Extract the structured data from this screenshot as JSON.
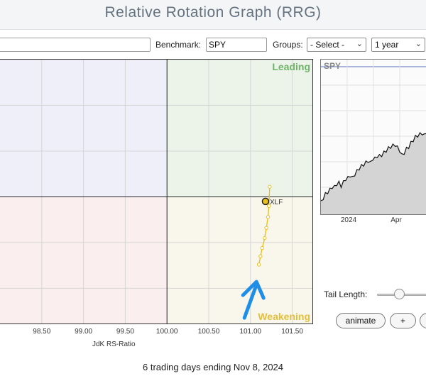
{
  "header": {
    "title": "Relative Rotation Graph (RRG)"
  },
  "controls": {
    "symbols_value": "",
    "benchmark_label": "Benchmark:",
    "benchmark_value": "SPY",
    "groups_label": "Groups:",
    "groups_selected": "- Select -",
    "period_selected": "1 year"
  },
  "chart_data": [
    {
      "type": "scatter",
      "x_ticks": [
        "98.50",
        "99.00",
        "99.50",
        "100.00",
        "100.50",
        "101.00",
        "101.50"
      ],
      "xlabel": "JdK RS-Ratio",
      "xlim": [
        98.0,
        101.75
      ],
      "ylim": [
        98.6,
        101.5
      ],
      "center": [
        100.0,
        100.0
      ],
      "quadrant_labels": {
        "top_right": "Leading",
        "bottom_right": "Weakening"
      },
      "quadrant_colors": {
        "top_left": "#efeffa",
        "top_right": "#ecf4ea",
        "bottom_left": "#faeeee",
        "bottom_right": "#f9f7ec"
      },
      "series": [
        {
          "name": "XLF",
          "color": "#e8c020",
          "tail": [
            {
              "x": 101.1,
              "y": 99.26
            },
            {
              "x": 101.12,
              "y": 99.35
            },
            {
              "x": 101.14,
              "y": 99.44
            },
            {
              "x": 101.17,
              "y": 99.55
            },
            {
              "x": 101.19,
              "y": 99.66
            },
            {
              "x": 101.21,
              "y": 99.78
            },
            {
              "x": 101.22,
              "y": 99.9
            },
            {
              "x": 101.23,
              "y": 100.11
            }
          ],
          "head": {
            "x": 101.18,
            "y": 99.95
          }
        }
      ]
    },
    {
      "type": "area",
      "title": "SPY",
      "x_ticks": [
        "2024",
        "Apr"
      ],
      "values": [
        0.08,
        0.12,
        0.16,
        0.2,
        0.22,
        0.25,
        0.24,
        0.28,
        0.3,
        0.27,
        0.32,
        0.35,
        0.38,
        0.4,
        0.36,
        0.42,
        0.45,
        0.48,
        0.5,
        0.52,
        0.55,
        0.58,
        0.56,
        0.6,
        0.62,
        0.64,
        0.63,
        0.66,
        0.68,
        0.7,
        0.72,
        0.74,
        0.76,
        0.78,
        0.75,
        0.7,
        0.66,
        0.68,
        0.72,
        0.76,
        0.8,
        0.83,
        0.86,
        0.88,
        0.9,
        0.92,
        0.9,
        0.93
      ]
    }
  ],
  "benchmark_chart": {
    "symbol": "SPY",
    "tick_2024": "2024",
    "tick_apr": "Apr"
  },
  "tail": {
    "label": "Tail Length:",
    "value": 0.35
  },
  "buttons": {
    "animate": "animate",
    "plus": "+"
  },
  "footer": {
    "status": "6 trading days ending Nov 8, 2024"
  }
}
